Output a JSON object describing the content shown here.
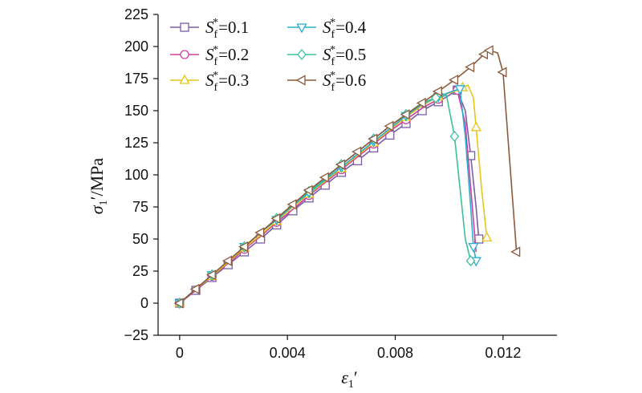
{
  "chart_data": {
    "type": "line",
    "xlabel": {
      "base": "ε",
      "sub": "1",
      "suffix": "′"
    },
    "ylabel": {
      "base": "σ",
      "sub": "1",
      "suffix": "′/MPa"
    },
    "xlim": [
      -0.0008,
      0.014
    ],
    "ylim": [
      -25,
      225
    ],
    "xticks": [
      0,
      0.004,
      0.008,
      0.012
    ],
    "xtick_labels": [
      "0",
      "0.004",
      "0.008",
      "0.012"
    ],
    "yticks": [
      -25,
      0,
      25,
      50,
      75,
      100,
      125,
      150,
      175,
      200,
      225
    ],
    "ytick_labels": [
      "−25",
      "0",
      "25",
      "50",
      "75",
      "100",
      "125",
      "150",
      "175",
      "200",
      "225"
    ],
    "legend_position": "top-left",
    "series": [
      {
        "name": "0.1",
        "legend_prefix": "S",
        "legend_sub": "f",
        "legend_sup": "*",
        "legend_eq": "=",
        "color": "#7b5ea7",
        "marker": "square",
        "x": [
          0,
          0.0006,
          0.0012,
          0.0018,
          0.0024,
          0.003,
          0.0036,
          0.0042,
          0.0048,
          0.0054,
          0.006,
          0.0066,
          0.0072,
          0.0078,
          0.0084,
          0.009,
          0.0096,
          0.01,
          0.0103,
          0.0106,
          0.0108,
          0.011,
          0.0111
        ],
        "y": [
          0,
          10,
          20,
          30,
          40,
          50,
          61,
          72,
          82,
          92,
          102,
          111,
          121,
          131,
          140,
          150,
          157,
          162,
          166,
          150,
          115,
          75,
          50
        ],
        "marker_idx": [
          0,
          1,
          2,
          3,
          4,
          5,
          6,
          7,
          8,
          9,
          10,
          11,
          12,
          13,
          14,
          15,
          16,
          18,
          20,
          22
        ]
      },
      {
        "name": "0.2",
        "legend_prefix": "S",
        "legend_sub": "f",
        "legend_sup": "*",
        "legend_eq": "=",
        "color": "#d040a0",
        "marker": "circle",
        "x": [
          0,
          0.0006,
          0.0012,
          0.0018,
          0.0024,
          0.003,
          0.0036,
          0.0042,
          0.0048,
          0.0054,
          0.006,
          0.0066,
          0.0072,
          0.0078,
          0.0084,
          0.009,
          0.0096,
          0.01,
          0.0103,
          0.0106,
          0.0108,
          0.011
        ],
        "y": [
          0,
          10,
          21,
          31,
          42,
          52,
          63,
          73,
          84,
          94,
          104,
          114,
          124,
          134,
          143,
          152,
          159,
          164,
          166,
          140,
          90,
          40
        ],
        "marker_idx": [
          0,
          2,
          4,
          6,
          8,
          10,
          12,
          14,
          16,
          18
        ]
      },
      {
        "name": "0.3",
        "legend_prefix": "S",
        "legend_sub": "f",
        "legend_sup": "*",
        "legend_eq": "=",
        "color": "#e6c619",
        "marker": "triangle-up",
        "x": [
          0,
          0.0006,
          0.0012,
          0.0018,
          0.0024,
          0.003,
          0.0036,
          0.0042,
          0.0048,
          0.0054,
          0.006,
          0.0066,
          0.0072,
          0.0078,
          0.0084,
          0.009,
          0.0096,
          0.0102,
          0.0105,
          0.0107,
          0.0109,
          0.011,
          0.0112,
          0.0114
        ],
        "y": [
          0,
          11,
          21,
          32,
          43,
          53,
          64,
          75,
          85,
          95,
          105,
          115,
          125,
          135,
          145,
          154,
          161,
          165,
          168,
          170,
          160,
          137,
          90,
          51
        ],
        "marker_idx": [
          0,
          2,
          4,
          6,
          8,
          10,
          12,
          14,
          16,
          18,
          21,
          23
        ]
      },
      {
        "name": "0.4",
        "legend_prefix": "S",
        "legend_sub": "f",
        "legend_sup": "*",
        "legend_eq": "=",
        "color": "#2aafd0",
        "marker": "triangle-down",
        "x": [
          0,
          0.0006,
          0.0012,
          0.0018,
          0.0024,
          0.003,
          0.0036,
          0.0042,
          0.0048,
          0.0054,
          0.006,
          0.0066,
          0.0072,
          0.0078,
          0.0084,
          0.009,
          0.0096,
          0.0101,
          0.0104,
          0.0106,
          0.0108,
          0.0109,
          0.011
        ],
        "y": [
          0,
          11,
          22,
          33,
          44,
          55,
          65,
          76,
          86,
          96,
          106,
          116,
          126,
          136,
          146,
          155,
          161,
          165,
          167,
          130,
          75,
          44,
          33
        ],
        "marker_idx": [
          0,
          2,
          4,
          6,
          8,
          10,
          12,
          14,
          16,
          18,
          21,
          22
        ]
      },
      {
        "name": "0.5",
        "legend_prefix": "S",
        "legend_sub": "f",
        "legend_sup": "*",
        "legend_eq": "=",
        "color": "#3cc0a0",
        "marker": "diamond",
        "x": [
          0,
          0.0006,
          0.0012,
          0.0018,
          0.0024,
          0.003,
          0.0036,
          0.0042,
          0.0048,
          0.0054,
          0.006,
          0.0066,
          0.0072,
          0.0078,
          0.0084,
          0.009,
          0.0095,
          0.0099,
          0.0102,
          0.0104,
          0.0106,
          0.0108
        ],
        "y": [
          0,
          11,
          22,
          33,
          44,
          55,
          66,
          77,
          87,
          97,
          108,
          118,
          128,
          138,
          147,
          156,
          160,
          162,
          130,
          90,
          50,
          33
        ],
        "marker_idx": [
          0,
          2,
          4,
          6,
          8,
          10,
          12,
          14,
          16,
          18,
          21
        ]
      },
      {
        "name": "0.6",
        "legend_prefix": "S",
        "legend_sub": "f",
        "legend_sup": "*",
        "legend_eq": "=",
        "color": "#8b5a3c",
        "marker": "triangle-left",
        "x": [
          0,
          0.0006,
          0.0012,
          0.0018,
          0.0024,
          0.003,
          0.0036,
          0.0042,
          0.0048,
          0.0054,
          0.006,
          0.0066,
          0.0072,
          0.0078,
          0.0084,
          0.009,
          0.0096,
          0.0102,
          0.0108,
          0.0113,
          0.0115,
          0.0118,
          0.012,
          0.0125
        ],
        "y": [
          0,
          11,
          22,
          33,
          44,
          55,
          66,
          77,
          88,
          98,
          108,
          118,
          128,
          138,
          147,
          156,
          165,
          174,
          184,
          194,
          197,
          195,
          180,
          40
        ],
        "marker_idx": [
          0,
          1,
          2,
          3,
          4,
          5,
          6,
          7,
          8,
          9,
          10,
          11,
          12,
          13,
          14,
          15,
          16,
          17,
          18,
          19,
          20,
          22,
          23
        ]
      }
    ]
  }
}
